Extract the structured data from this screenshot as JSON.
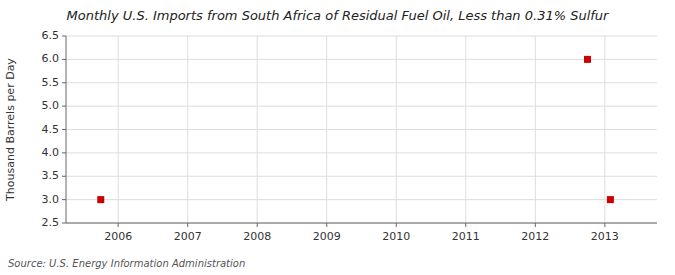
{
  "chart_data": {
    "type": "scatter",
    "title": "Monthly U.S. Imports from South Africa of Residual Fuel Oil, Less than 0.31% Sulfur",
    "ylabel": "Thousand Barrels per Day",
    "source": "Source: U.S. Energy Information Administration",
    "x": [
      2005.75,
      2012.75,
      2013.08
    ],
    "values": [
      3.0,
      6.0,
      3.0
    ],
    "color": "#cc0000",
    "marker": "square",
    "xlim": [
      2005.25,
      2013.75
    ],
    "ylim": [
      2.5,
      6.5
    ],
    "xticks": [
      2006,
      2007,
      2008,
      2009,
      2010,
      2011,
      2012,
      2013
    ],
    "yticks": [
      2.5,
      {
        "value": 3.0,
        "label": "3.0"
      },
      3.5,
      {
        "value": 4.0,
        "label": "4.0"
      },
      4.5,
      {
        "value": 5.0,
        "label": "5.0"
      },
      5.5,
      {
        "value": 6.0,
        "label": "6.0"
      },
      6.5
    ],
    "grid": true
  }
}
